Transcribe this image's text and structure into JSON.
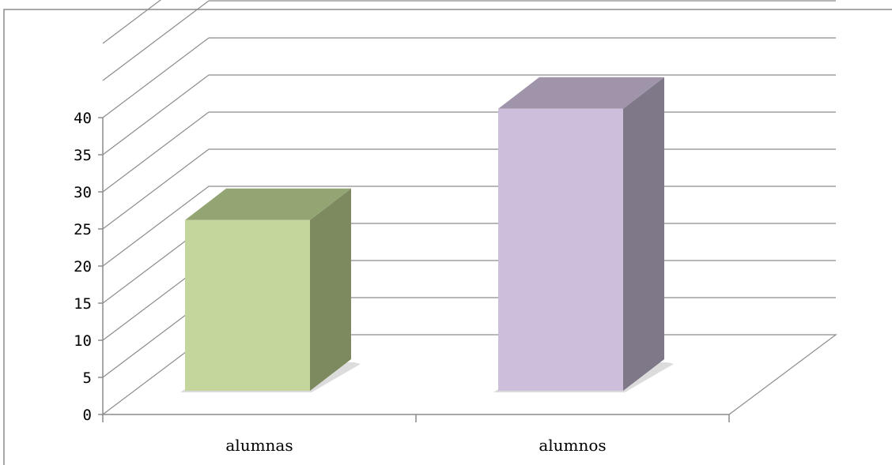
{
  "chart_data": {
    "type": "bar",
    "style": "3d-column",
    "categories": [
      "alumnas",
      "alumnos"
    ],
    "values": [
      23,
      38
    ],
    "colors": {
      "alumnas": {
        "front": "#c4d69b",
        "top": "#93a573",
        "side": "#7d8a5f"
      },
      "alumnos": {
        "front": "#cdbfdb",
        "top": "#9f94a9",
        "side": "#7e7889"
      }
    },
    "ylim": [
      0,
      40
    ],
    "ytick_step": 5,
    "ytick_max": 40,
    "grid_max": 50,
    "grid": true,
    "title": "",
    "xlabel": "",
    "ylabel": ""
  }
}
